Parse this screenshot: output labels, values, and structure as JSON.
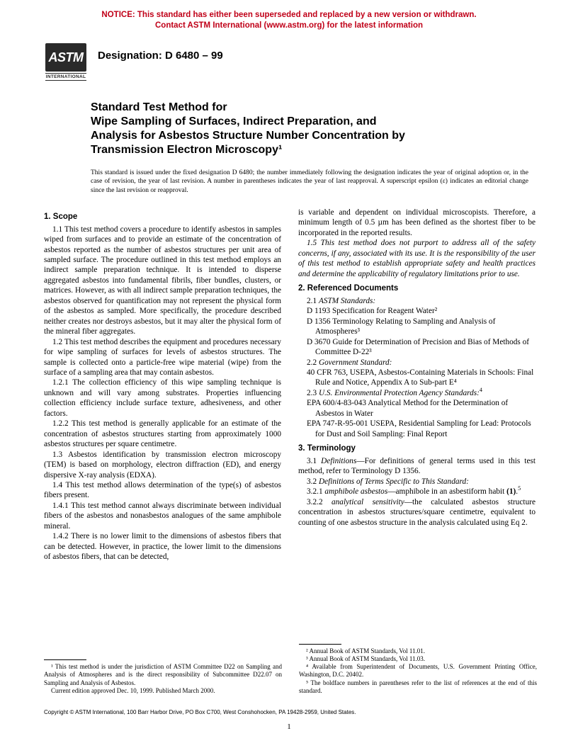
{
  "notice": {
    "line1": "NOTICE: This standard has either been superseded and replaced by a new version or withdrawn.",
    "line2": "Contact ASTM International (www.astm.org) for the latest information",
    "color": "#c00018"
  },
  "logo": {
    "top": "ASTM",
    "bottom": "INTERNATIONAL"
  },
  "designation": "Designation: D 6480 – 99",
  "title": {
    "line1": "Standard Test Method for",
    "line2": "Wipe Sampling of Surfaces, Indirect Preparation, and",
    "line3": "Analysis for Asbestos Structure Number Concentration by",
    "line4": "Transmission Electron Microscopy¹"
  },
  "issuance": "This standard is issued under the fixed designation D 6480; the number immediately following the designation indicates the year of original adoption or, in the case of revision, the year of last revision. A number in parentheses indicates the year of last reapproval. A superscript epsilon (ε) indicates an editorial change since the last revision or reapproval.",
  "left": {
    "scope_head": "1. Scope",
    "p11": "1.1 This test method covers a procedure to identify asbestos in samples wiped from surfaces and to provide an estimate of the concentration of asbestos reported as the number of asbestos structures per unit area of sampled surface. The procedure outlined in this test method employs an indirect sample preparation technique. It is intended to disperse aggregated asbestos into fundamental fibrils, fiber bundles, clusters, or matrices. However, as with all indirect sample preparation techniques, the asbestos observed for quantification may not represent the physical form of the asbestos as sampled. More specifically, the procedure described neither creates nor destroys asbestos, but it may alter the physical form of the mineral fiber aggregates.",
    "p12": "1.2 This test method describes the equipment and procedures necessary for wipe sampling of surfaces for levels of asbestos structures. The sample is collected onto a particle-free wipe material (wipe) from the surface of a sampling area that may contain asbestos.",
    "p121": "1.2.1 The collection efficiency of this wipe sampling technique is unknown and will vary among substrates. Properties influencing collection efficiency include surface texture, adhesiveness, and other factors.",
    "p122": "1.2.2 This test method is generally applicable for an estimate of the concentration of asbestos structures starting from approximately 1000 asbestos structures per square centimetre.",
    "p13": "1.3 Asbestos identification by transmission electron microscopy (TEM) is based on morphology, electron diffraction (ED), and energy dispersive X-ray analysis (EDXA).",
    "p14": "1.4 This test method allows determination of the type(s) of asbestos fibers present.",
    "p141": "1.4.1 This test method cannot always discriminate between individual fibers of the asbestos and nonasbestos analogues of the same amphibole mineral.",
    "p142": "1.4.2 There is no lower limit to the dimensions of asbestos fibers that can be detected. However, in practice, the lower limit to the dimensions of asbestos fibers, that can be detected,"
  },
  "right": {
    "cont": "is variable and dependent on individual microscopists. Therefore, a minimum length of 0.5 µm has been defined as the shortest fiber to be incorporated in the reported results.",
    "p15": "1.5 This test method does not purport to address all of the safety concerns, if any, associated with its use. It is the responsibility of the user of this test method to establish appropriate safety and health practices and determine the applicability of regulatory limitations prior to use.",
    "ref_head": "2. Referenced Documents",
    "r21": "2.1 ASTM Standards:",
    "rD1193": "D 1193  Specification for Reagent Water²",
    "rD1356": "D 1356  Terminology Relating to Sampling and Analysis of Atmospheres³",
    "rD3670": "D 3670  Guide for Determination of Precision and Bias of Methods of Committee D-22³",
    "r22": "2.2  Government Standard:",
    "r40cfr": "40 CFR 763, USEPA, Asbestos-Containing Materials in Schools: Final Rule and Notice, Appendix A to Sub-part E⁴",
    "r23": "2.3  U.S. Environmental Protection Agency Standards:⁴",
    "rEPA1": "EPA 600/4-83-043  Analytical Method for the Determination of Asbestos in Water",
    "rEPA2": "EPA 747-R-95-001  USEPA, Residential Sampling for Lead: Protocols for Dust and Soil Sampling: Final Report",
    "term_head": "3. Terminology",
    "t31": "3.1 Definitions—For definitions of general terms used in this test method, refer to Terminology D 1356.",
    "t32": "3.2 Definitions of Terms Specific to This Standard:",
    "t321": "3.2.1 amphibole asbestos—amphibole in an asbestiform habit (1).⁵",
    "t322": "3.2.2 analytical sensitivity—the calculated asbestos structure concentration in asbestos structures/square centimetre, equivalent to counting of one asbestos structure in the analysis calculated using Eq 2."
  },
  "footnotes_left": {
    "f1": "¹ This test method is under the jurisdiction of ASTM Committee D22 on Sampling and Analysis of Atmospheres and is the direct responsibility of Subcommittee D22.07 on Sampling and Analysis of Asbestos.",
    "f1b": "Current edition approved Dec. 10, 1999. Published March 2000."
  },
  "footnotes_right": {
    "f2": "² Annual Book of ASTM Standards, Vol 11.01.",
    "f3": "³ Annual Book of ASTM Standards, Vol 11.03.",
    "f4": "⁴ Available from Superintendent of Documents, U.S. Government Printing Office, Washington, D.C. 20402.",
    "f5": "⁵ The boldface numbers in parentheses refer to the list of references at the end of this standard."
  },
  "copyright": "Copyright © ASTM International, 100 Barr Harbor Drive, PO Box C700, West Conshohocken, PA 19428-2959, United States.",
  "pagenum": "1"
}
